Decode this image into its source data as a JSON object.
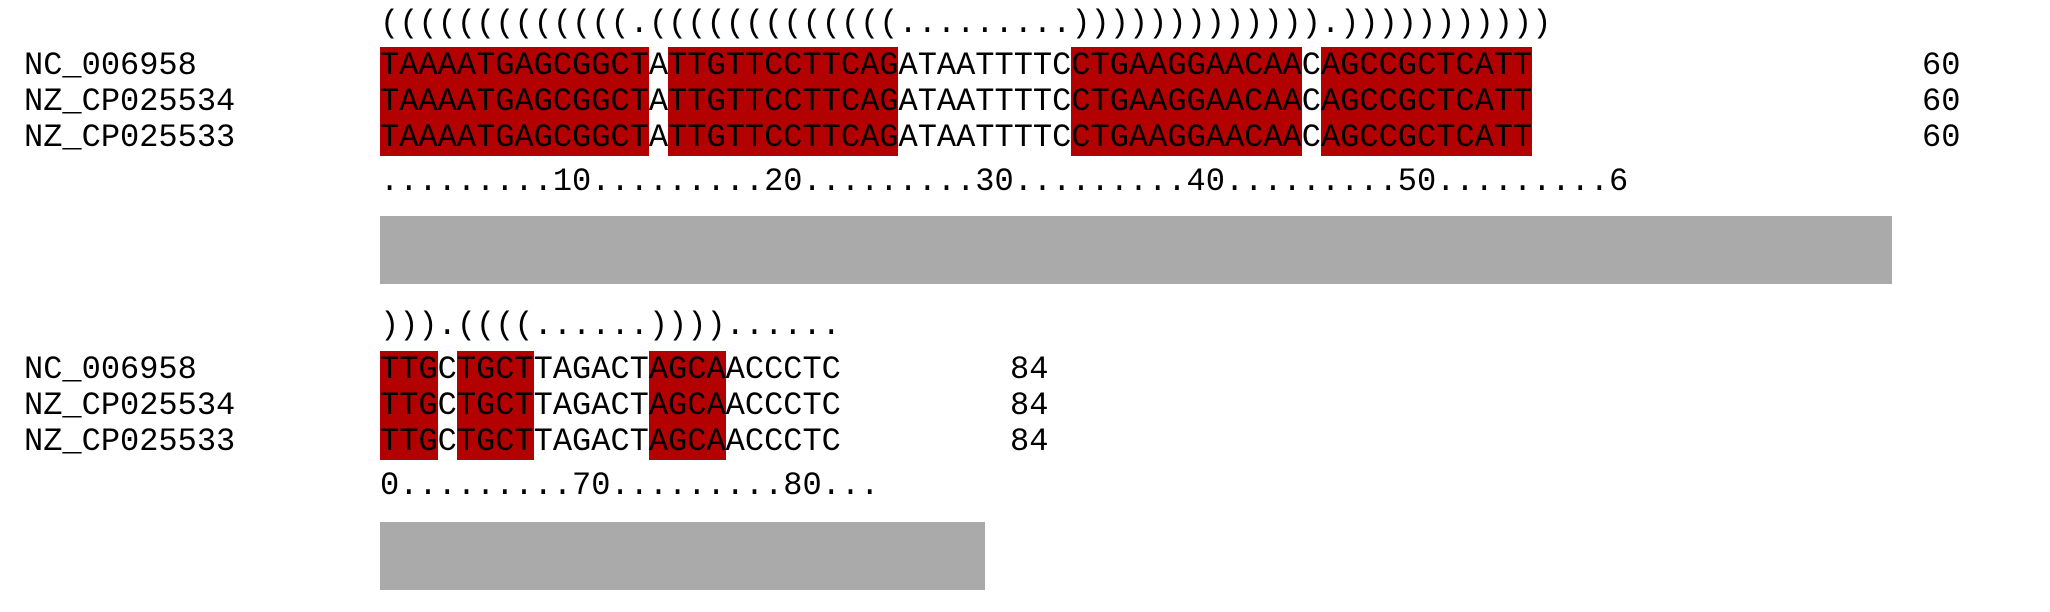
{
  "colors": {
    "paired": "#b30000",
    "conservation_bar": "#aaaaaa",
    "text": "#000000"
  },
  "blocks": [
    {
      "structure": "(((((((((((((.(((((((((((((.........))))))))))))).)))))))))))",
      "rows": [
        {
          "name": "NC_006958",
          "end": "60"
        },
        {
          "name": "NZ_CP025534",
          "end": "60"
        },
        {
          "name": "NZ_CP025533",
          "end": "60"
        }
      ],
      "segments": [
        {
          "text": "TAAAATGAGCGGCT",
          "paired": true
        },
        {
          "text": "A",
          "paired": false
        },
        {
          "text": "TTGTTCCTTCAG",
          "paired": true
        },
        {
          "text": "ATAATTTTC",
          "paired": false
        },
        {
          "text": "CTGAAGGAACAA",
          "paired": true
        },
        {
          "text": "C",
          "paired": false
        },
        {
          "text": "AGCCGCTCATT",
          "paired": true
        }
      ],
      "ruler": ".........10.........20.........30.........40.........50.........6"
    },
    {
      "structure": "))).((((......))))......",
      "rows": [
        {
          "name": "NC_006958",
          "end": "84"
        },
        {
          "name": "NZ_CP025534",
          "end": "84"
        },
        {
          "name": "NZ_CP025533",
          "end": "84"
        }
      ],
      "segments": [
        {
          "text": "TTG",
          "paired": true
        },
        {
          "text": "C",
          "paired": false
        },
        {
          "text": "TGCT",
          "paired": true
        },
        {
          "text": "TAGACT",
          "paired": false
        },
        {
          "text": "AGCA",
          "paired": true
        },
        {
          "text": "ACCCTC",
          "paired": false
        }
      ],
      "ruler": "0.........70.........80..."
    }
  ]
}
